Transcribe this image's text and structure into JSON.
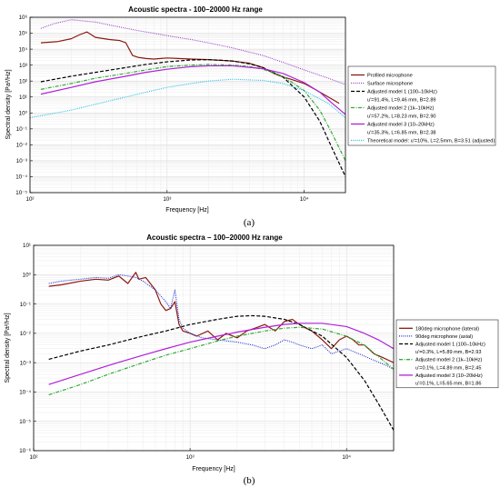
{
  "figure": {
    "captions": [
      "(a)",
      "(b)"
    ]
  },
  "chart_data": [
    {
      "type": "line",
      "title": "Acoustic spectra - 100–20000 Hz range",
      "xlabel": "Frequency [Hz]",
      "ylabel": "Spectral density [Pa²/Hz]",
      "xscale": "log",
      "yscale": "log",
      "xlim": [
        100,
        20000
      ],
      "ylim": [
        1e-05,
        1000000.0
      ],
      "grid": true,
      "legend_position": "right",
      "x_ticks": [
        100,
        1000,
        10000
      ],
      "x_tick_labels": [
        "10²",
        "10³",
        "10⁴"
      ],
      "y_ticks": [
        1e-05,
        0.0001,
        0.001,
        0.01,
        0.1,
        1,
        10,
        100,
        1000,
        10000,
        100000,
        1000000
      ],
      "y_tick_labels": [
        "10⁻⁵",
        "10⁻⁴",
        "10⁻³",
        "10⁻²",
        "10⁻¹",
        "10⁰",
        "10¹",
        "10²",
        "10³",
        "10⁴",
        "10⁵",
        "10⁶"
      ],
      "series": [
        {
          "name": "Profiled microphone",
          "color": "#8b1a10",
          "style": "solid",
          "x": [
            120,
            160,
            200,
            230,
            260,
            300,
            380,
            450,
            500,
            560,
            620,
            700,
            800,
            900,
            1000,
            1200,
            1500,
            2000,
            3000,
            4000,
            5000,
            6000,
            7000,
            8000,
            10000,
            12000,
            15000,
            18000
          ],
          "y": [
            25000,
            30000,
            45000,
            80000,
            120000,
            55000,
            40000,
            35000,
            25000,
            4000,
            3000,
            2600,
            2400,
            2600,
            2800,
            2600,
            2400,
            2200,
            1800,
            1300,
            700,
            300,
            180,
            130,
            70,
            30,
            10,
            4
          ]
        },
        {
          "name": "Surface microphone",
          "color": "#9a3fc9",
          "style": "dotted",
          "x": [
            120,
            150,
            200,
            300,
            400,
            600,
            800,
            1000,
            1500,
            2000,
            3000,
            5000,
            7000,
            10000,
            15000,
            20000
          ],
          "y": [
            200000,
            400000,
            700000,
            500000,
            300000,
            150000,
            100000,
            70000,
            40000,
            25000,
            12000,
            4000,
            1500,
            500,
            150,
            60
          ]
        },
        {
          "name": "Adjusted model 1 (100–10kHz)",
          "params": "u'=91.4%, L=9.46 mm, B=2.89",
          "color": "#000000",
          "style": "dashed",
          "x": [
            120,
            200,
            300,
            500,
            700,
            1000,
            1500,
            2000,
            2500,
            3000,
            4000,
            5000,
            7000,
            10000,
            13000,
            16000,
            20000
          ],
          "y": [
            90,
            200,
            350,
            700,
            1100,
            1600,
            2100,
            2200,
            2000,
            1800,
            1200,
            700,
            180,
            10,
            0.3,
            0.006,
            0.0001
          ]
        },
        {
          "name": "Adjusted model 2 (1k–10kHz)",
          "params": "u'=57.2%, L=8.23 mm, B=2.90",
          "color": "#33aa33",
          "style": "dashdot",
          "x": [
            120,
            200,
            300,
            500,
            700,
            1000,
            1500,
            2000,
            3000,
            4000,
            5000,
            7000,
            10000,
            13000,
            16000,
            20000
          ],
          "y": [
            30,
            70,
            150,
            300,
            500,
            800,
            1000,
            1100,
            1000,
            800,
            550,
            200,
            25,
            1.5,
            0.05,
            0.001
          ]
        },
        {
          "name": "Adjusted model 3 (10–20kHz)",
          "params": "u'=35.3%, L=6.85 mm, B=2.38",
          "color": "#b020d8",
          "style": "solid",
          "x": [
            120,
            200,
            300,
            500,
            700,
            1000,
            1500,
            2000,
            3000,
            5000,
            7000,
            10000,
            13000,
            16000,
            20000
          ],
          "y": [
            15,
            40,
            90,
            200,
            350,
            550,
            800,
            900,
            900,
            600,
            300,
            80,
            20,
            4,
            0.8
          ]
        },
        {
          "name": "Theoretical model: u'=10%, L=2.5mm, B=3.51 (adjusted)",
          "color": "#22bfe8",
          "style": "dotted",
          "x": [
            100,
            200,
            300,
            500,
            700,
            1000,
            1500,
            2000,
            3000,
            5000,
            7000,
            10000,
            15000,
            20000
          ],
          "y": [
            0.5,
            1.5,
            3.5,
            10,
            20,
            40,
            70,
            100,
            130,
            110,
            70,
            25,
            4,
            0.5
          ]
        }
      ]
    },
    {
      "type": "line",
      "title": "Acoustic spectra – 100–20000 Hz range",
      "xlabel": "Frequency [Hz]",
      "ylabel": "Spectral density [Pa²/Hz]",
      "xscale": "log",
      "yscale": "log",
      "xlim": [
        100,
        20000
      ],
      "ylim": [
        1e-06,
        10
      ],
      "grid": true,
      "legend_position": "right",
      "x_ticks": [
        100,
        1000,
        10000
      ],
      "x_tick_labels": [
        "10²",
        "10³",
        "10⁴"
      ],
      "y_ticks": [
        1e-06,
        1e-05,
        0.0001,
        0.001,
        0.01,
        0.1,
        1,
        10
      ],
      "y_tick_labels": [
        "10⁻⁶",
        "10⁻⁵",
        "10⁻⁴",
        "10⁻³",
        "10⁻²",
        "10⁻¹",
        "10⁰",
        "10¹"
      ],
      "series": [
        {
          "name": "180deg microphone (lateral)",
          "color": "#8b1a10",
          "style": "solid",
          "x": [
            125,
            150,
            200,
            250,
            300,
            350,
            400,
            450,
            470,
            520,
            600,
            650,
            700,
            750,
            800,
            850,
            900,
            1000,
            1100,
            1300,
            1500,
            1700,
            2000,
            2300,
            2600,
            3000,
            3500,
            4000,
            4500,
            5000,
            5500,
            6000,
            7000,
            8000,
            9000,
            10000,
            11000,
            12000,
            13000,
            15000,
            17000,
            20000
          ],
          "y": [
            0.4,
            0.45,
            0.6,
            0.7,
            0.65,
            0.9,
            0.5,
            1.2,
            0.7,
            0.8,
            0.3,
            0.1,
            0.06,
            0.07,
            0.12,
            0.02,
            0.012,
            0.01,
            0.008,
            0.012,
            0.006,
            0.01,
            0.007,
            0.012,
            0.015,
            0.02,
            0.012,
            0.025,
            0.03,
            0.02,
            0.015,
            0.012,
            0.006,
            0.003,
            0.006,
            0.008,
            0.006,
            0.004,
            0.004,
            0.002,
            0.0015,
            0.001
          ]
        },
        {
          "name": "90deg microphone (axial)",
          "color": "#2233cc",
          "style": "dotted",
          "x": [
            125,
            150,
            200,
            250,
            300,
            350,
            400,
            450,
            500,
            600,
            700,
            750,
            800,
            850,
            900,
            1000,
            1200,
            1500,
            2000,
            2500,
            3000,
            3500,
            4000,
            4500,
            5000,
            6000,
            7000,
            8000,
            10000,
            12000,
            15000,
            18000,
            20000
          ],
          "y": [
            0.5,
            0.6,
            0.7,
            0.8,
            0.75,
            1.0,
            0.9,
            0.8,
            0.6,
            0.3,
            0.12,
            0.07,
            0.3,
            0.03,
            0.015,
            0.01,
            0.007,
            0.006,
            0.005,
            0.004,
            0.003,
            0.004,
            0.006,
            0.005,
            0.004,
            0.003,
            0.004,
            0.002,
            0.003,
            0.002,
            0.0012,
            0.0008,
            0.0006
          ]
        },
        {
          "name": "Adjusted model 1 (100–10kHz)",
          "params": "u'=0.3%, L=5.89 mm, B=2.93",
          "color": "#000000",
          "style": "dashed",
          "x": [
            125,
            200,
            300,
            500,
            700,
            1000,
            1500,
            2000,
            2500,
            3000,
            4000,
            5000,
            7000,
            10000,
            13000,
            16000,
            20000
          ],
          "y": [
            0.0013,
            0.0025,
            0.004,
            0.008,
            0.012,
            0.02,
            0.03,
            0.038,
            0.04,
            0.038,
            0.03,
            0.02,
            0.008,
            0.0015,
            0.00025,
            4e-05,
            5e-06
          ]
        },
        {
          "name": "Adjusted model 2 (1k–10kHz)",
          "params": "u'=0.1%, L=4.89 mm, B=2.45",
          "color": "#33aa33",
          "style": "dashdot",
          "x": [
            125,
            200,
            300,
            500,
            700,
            1000,
            1500,
            2000,
            3000,
            4000,
            5000,
            7000,
            10000,
            13000,
            16000,
            20000
          ],
          "y": [
            8e-05,
            0.00018,
            0.0004,
            0.001,
            0.0018,
            0.003,
            0.0055,
            0.008,
            0.012,
            0.015,
            0.016,
            0.014,
            0.008,
            0.004,
            0.0016,
            0.0006
          ]
        },
        {
          "name": "Adjusted model 3 (10–20kHz)",
          "params": "u'=0.1%, L=5.65 mm, B=1.86",
          "color": "#b020d8",
          "style": "solid",
          "x": [
            125,
            200,
            300,
            500,
            700,
            1000,
            1500,
            2000,
            3000,
            4000,
            5000,
            7000,
            10000,
            13000,
            16000,
            20000
          ],
          "y": [
            0.00018,
            0.0004,
            0.0008,
            0.0018,
            0.003,
            0.005,
            0.008,
            0.011,
            0.016,
            0.02,
            0.022,
            0.022,
            0.017,
            0.01,
            0.006,
            0.003
          ]
        }
      ]
    }
  ]
}
